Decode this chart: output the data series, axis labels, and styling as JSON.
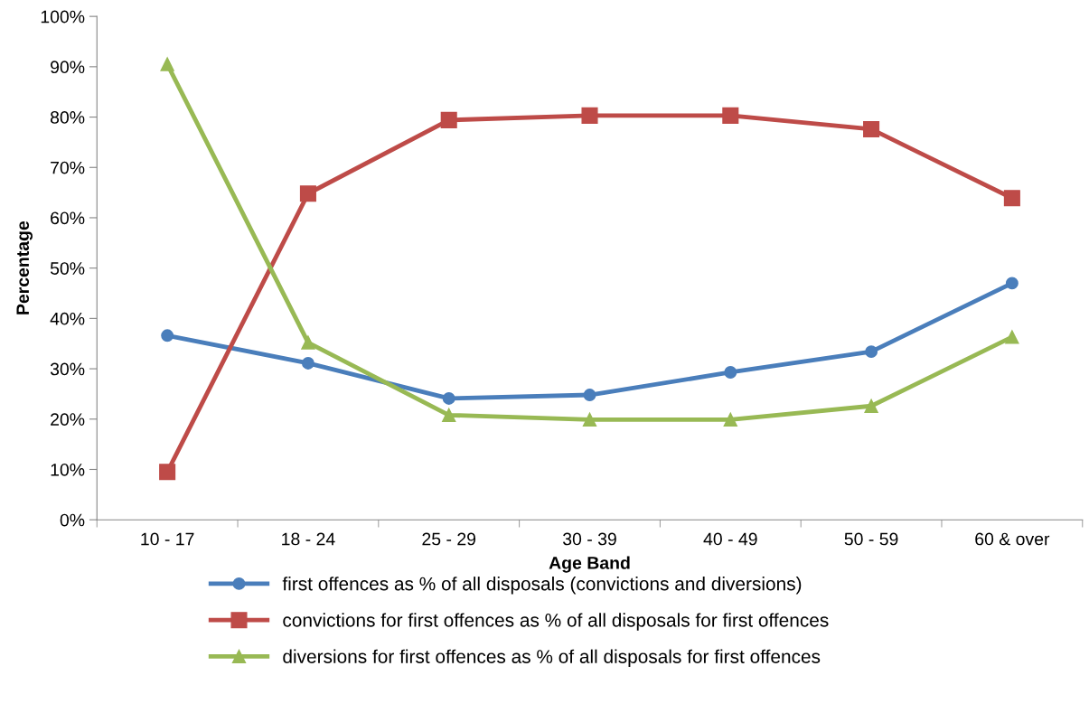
{
  "chart_data": {
    "type": "line",
    "xlabel": "Age Band",
    "ylabel": "Percentage",
    "categories": [
      "10 - 17",
      "18 - 24",
      "25 - 29",
      "30 - 39",
      "40 - 49",
      "50 - 59",
      "60 & over"
    ],
    "series": [
      {
        "name": "first offences as % of all disposals (convictions and diversions)",
        "color": "#4a7ebb",
        "marker": "circle",
        "values": [
          36.6,
          31.1,
          24.1,
          24.8,
          29.3,
          33.4,
          47.0
        ]
      },
      {
        "name": "convictions for first offences as % of all disposals for first offences",
        "color": "#be4b48",
        "marker": "square",
        "values": [
          9.5,
          64.8,
          79.4,
          80.3,
          80.3,
          77.6,
          63.9
        ]
      },
      {
        "name": "diversions for first offences as % of all disposals for first offences",
        "color": "#98b954",
        "marker": "triangle",
        "values": [
          90.5,
          35.2,
          20.8,
          19.9,
          19.9,
          22.6,
          36.3
        ]
      }
    ],
    "ylim": [
      0,
      100
    ],
    "yticks": [
      {
        "value": 0,
        "label": "0%"
      },
      {
        "value": 10,
        "label": "10%"
      },
      {
        "value": 20,
        "label": "20%"
      },
      {
        "value": 30,
        "label": "30%"
      },
      {
        "value": 40,
        "label": "40%"
      },
      {
        "value": 50,
        "label": "50%"
      },
      {
        "value": 60,
        "label": "60%"
      },
      {
        "value": 70,
        "label": "70%"
      },
      {
        "value": 80,
        "label": "80%"
      },
      {
        "value": 90,
        "label": "90%"
      },
      {
        "value": 100,
        "label": "100%"
      }
    ],
    "grid": false,
    "legend": "bottom",
    "line_style": "solid"
  }
}
